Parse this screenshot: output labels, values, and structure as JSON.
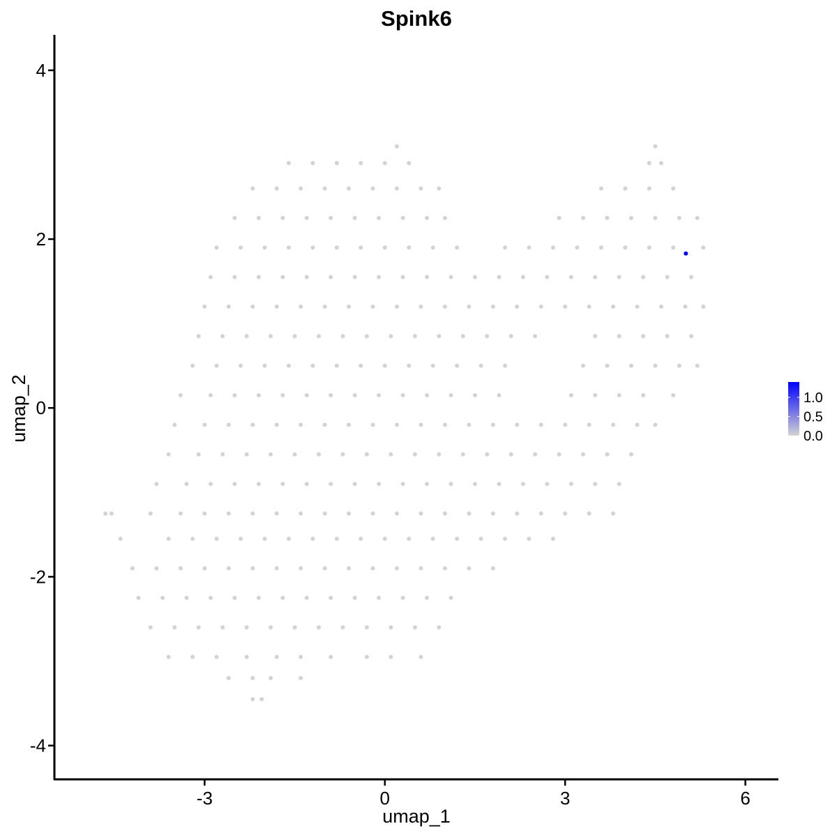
{
  "chart_data": {
    "type": "scatter",
    "title": "Spink6",
    "xlabel": "umap_1",
    "ylabel": "umap_2",
    "xlim": [
      -5.5,
      6.55
    ],
    "ylim": [
      -4.4,
      4.42
    ],
    "xticks": [
      -3,
      0,
      3,
      6
    ],
    "yticks": [
      -4,
      -2,
      0,
      2,
      4
    ],
    "grid": false,
    "legend": {
      "placement": "right",
      "type": "colorbar",
      "min": 0,
      "max": 1.4,
      "ticks": [
        {
          "value": 0,
          "label": "0.0"
        },
        {
          "value": 0.5,
          "label": "0.5"
        },
        {
          "value": 1.0,
          "label": "1.0"
        }
      ],
      "low_color": "#D3D3D3",
      "high_color": "#0000FF"
    },
    "background_expression": 0,
    "rows": [
      {
        "y": -3.45,
        "x": [
          -2.2,
          -2.05
        ]
      },
      {
        "y": -3.2,
        "x": [
          -2.6,
          -2.2,
          -1.9,
          -1.4
        ]
      },
      {
        "y": -2.95,
        "x": [
          -3.6,
          -3.2,
          -2.8,
          -2.3,
          -1.8,
          -1.4,
          -0.9,
          -0.3,
          0.1,
          0.6
        ]
      },
      {
        "y": -2.6,
        "x": [
          -3.9,
          -3.5,
          -3.1,
          -2.7,
          -2.3,
          -1.9,
          -1.5,
          -1.1,
          -0.7,
          -0.3,
          0.1,
          0.5,
          0.9
        ]
      },
      {
        "y": -2.25,
        "x": [
          -4.1,
          -3.7,
          -3.3,
          -2.9,
          -2.5,
          -2.1,
          -1.7,
          -1.3,
          -0.9,
          -0.5,
          -0.1,
          0.3,
          0.7,
          1.1
        ]
      },
      {
        "y": -1.9,
        "x": [
          -4.2,
          -3.8,
          -3.4,
          -3.0,
          -2.6,
          -2.2,
          -1.8,
          -1.4,
          -1.0,
          -0.6,
          -0.2,
          0.2,
          0.6,
          1.0,
          1.4,
          1.8
        ]
      },
      {
        "y": -1.55,
        "x": [
          -4.4,
          -3.6,
          -3.2,
          -2.8,
          -2.4,
          -2.0,
          -1.6,
          -1.2,
          -0.8,
          -0.4,
          0.0,
          0.4,
          0.8,
          1.2,
          1.6,
          2.0,
          2.4,
          2.8
        ]
      },
      {
        "y": -1.25,
        "x": [
          -4.65,
          -4.55,
          -3.9,
          -3.4,
          -3.0,
          -2.6,
          -2.2,
          -1.8,
          -1.4,
          -1.0,
          -0.6,
          -0.2,
          0.2,
          0.6,
          1.0,
          1.4,
          1.8,
          2.2,
          2.6,
          3.0,
          3.4,
          3.8
        ]
      },
      {
        "y": -0.9,
        "x": [
          -3.8,
          -3.3,
          -2.9,
          -2.5,
          -2.1,
          -1.7,
          -1.3,
          -0.9,
          -0.5,
          -0.1,
          0.3,
          0.7,
          1.1,
          1.5,
          1.9,
          2.3,
          2.7,
          3.1,
          3.5,
          3.9
        ]
      },
      {
        "y": -0.55,
        "x": [
          -3.6,
          -3.1,
          -2.7,
          -2.3,
          -1.9,
          -1.5,
          -1.1,
          -0.7,
          -0.3,
          0.1,
          0.5,
          0.9,
          1.3,
          1.7,
          2.1,
          2.5,
          2.9,
          3.3,
          3.7,
          4.1
        ]
      },
      {
        "y": -0.2,
        "x": [
          -3.5,
          -3.0,
          -2.6,
          -2.2,
          -1.8,
          -1.4,
          -1.0,
          -0.6,
          -0.2,
          0.2,
          0.6,
          1.0,
          1.4,
          1.8,
          2.2,
          2.6,
          3.0,
          3.4,
          3.8,
          4.2,
          4.5
        ]
      },
      {
        "y": 0.15,
        "x": [
          -3.4,
          -2.9,
          -2.5,
          -2.1,
          -1.7,
          -1.3,
          -0.9,
          -0.5,
          -0.1,
          0.3,
          0.7,
          1.1,
          1.5,
          1.9,
          3.1,
          3.5,
          3.9,
          4.3,
          4.8
        ]
      },
      {
        "y": 0.5,
        "x": [
          -3.2,
          -2.8,
          -2.4,
          -2.0,
          -1.6,
          -1.2,
          -0.8,
          -0.4,
          0.0,
          0.4,
          0.8,
          1.2,
          1.6,
          2.0,
          3.3,
          3.7,
          4.1,
          4.5,
          4.9,
          5.2
        ]
      },
      {
        "y": 0.85,
        "x": [
          -3.1,
          -2.7,
          -2.3,
          -1.9,
          -1.5,
          -1.1,
          -0.7,
          -0.3,
          0.1,
          0.5,
          0.9,
          1.3,
          1.7,
          2.1,
          2.5,
          3.5,
          3.9,
          4.3,
          4.7,
          5.1
        ]
      },
      {
        "y": 1.2,
        "x": [
          -3.0,
          -2.6,
          -2.2,
          -1.8,
          -1.4,
          -1.0,
          -0.6,
          -0.2,
          0.2,
          0.6,
          1.0,
          1.4,
          1.8,
          2.2,
          2.6,
          3.0,
          3.4,
          3.8,
          4.2,
          4.6,
          5.0,
          5.3
        ]
      },
      {
        "y": 1.55,
        "x": [
          -2.9,
          -2.5,
          -2.1,
          -1.7,
          -1.3,
          -0.9,
          -0.5,
          -0.1,
          0.3,
          0.7,
          1.1,
          1.5,
          1.9,
          2.3,
          2.7,
          3.1,
          3.5,
          3.9,
          4.3,
          4.7,
          5.1
        ]
      },
      {
        "y": 1.9,
        "x": [
          -2.8,
          -2.4,
          -2.0,
          -1.6,
          -1.2,
          -0.8,
          -0.4,
          0.0,
          0.4,
          0.8,
          1.2,
          2.0,
          2.4,
          2.8,
          3.2,
          3.6,
          4.0,
          4.4,
          4.8,
          5.3
        ]
      },
      {
        "y": 2.25,
        "x": [
          -2.5,
          -2.1,
          -1.7,
          -1.3,
          -0.9,
          -0.5,
          -0.1,
          0.3,
          0.7,
          1.0,
          2.9,
          3.3,
          3.7,
          4.1,
          4.5,
          4.9,
          5.2
        ]
      },
      {
        "y": 2.6,
        "x": [
          -2.2,
          -1.8,
          -1.4,
          -1.0,
          -0.6,
          -0.2,
          0.2,
          0.6,
          0.9,
          3.6,
          4.0,
          4.4,
          4.8
        ]
      },
      {
        "y": 2.9,
        "x": [
          -1.6,
          -1.2,
          -0.8,
          -0.4,
          0.0,
          0.4,
          4.4,
          4.6
        ]
      },
      {
        "y": 3.1,
        "x": [
          0.2,
          4.5
        ]
      }
    ],
    "expressing_points": [
      {
        "x": 5.01,
        "y": 1.83,
        "value": 1.4
      }
    ]
  }
}
